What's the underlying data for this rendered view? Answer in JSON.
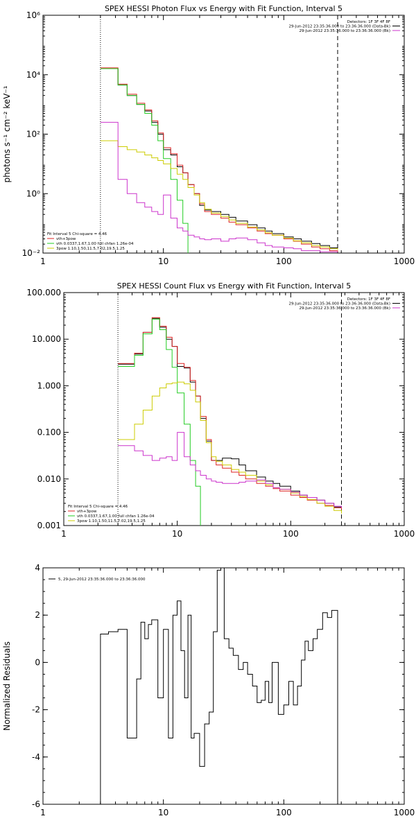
{
  "chart_data": [
    {
      "type": "line",
      "title": "SPEX HESSI Photon Flux vs Energy with Fit Function, Interval 5",
      "xlabel": "",
      "ylabel": "photons s⁻¹ cm⁻² keV⁻¹",
      "xscale": "log",
      "yscale": "log",
      "xlim": [
        1,
        1000
      ],
      "ylim": [
        0.01,
        1000000
      ],
      "x_ticks": [
        1,
        10,
        100,
        1000
      ],
      "x_tick_labels": [
        "1",
        "10",
        "100",
        "1000"
      ],
      "y_ticks": [
        0.01,
        1,
        100,
        10000,
        1000000
      ],
      "y_tick_labels": [
        "10⁻²",
        "10⁰",
        "10²",
        "10⁴",
        "10⁶"
      ],
      "vlines": [
        {
          "x": 3,
          "style": "dotted"
        },
        {
          "x": 280,
          "style": "dashed"
        }
      ],
      "legend_topright": [
        {
          "text": "Detectors: 1F 3F 4F 8F",
          "color": ""
        },
        {
          "text": "29-Jun-2012 23:35:36.000 to 23:36:36.000 (Data-Bk)",
          "color": "#000000"
        },
        {
          "text": "29-Jun-2012 23:35:36.000 to 23:36:36.000 (Bk)",
          "color": "#cc33cc"
        }
      ],
      "legend_bottomleft": [
        {
          "text": "Fit Interval 5   Chi-square = 4.46",
          "color": ""
        },
        {
          "text": "vth+3pow",
          "color": "#dd2222"
        },
        {
          "text": "vth 0.0337,1.67,1.00  full chfan 1.26e-04",
          "color": "#22cc22"
        },
        {
          "text": "3pow 1.10,1.50,11.5,7.02,19.5,1.25",
          "color": "#cccc00"
        }
      ],
      "series": [
        {
          "color": "#000000",
          "x": [
            3,
            3.5,
            4.2,
            5,
            6,
            7,
            8,
            9,
            10,
            11.5,
            13,
            14.5,
            16,
            18,
            20,
            22,
            25,
            30,
            35,
            40,
            50,
            60,
            70,
            80,
            100,
            120,
            140,
            170,
            200,
            240,
            280
          ],
          "y": [
            16000,
            16000,
            4500,
            2000,
            1000,
            600,
            250,
            100,
            30,
            20,
            8,
            5,
            2,
            1,
            0.4,
            0.28,
            0.25,
            0.2,
            0.16,
            0.12,
            0.09,
            0.07,
            0.055,
            0.045,
            0.035,
            0.03,
            0.025,
            0.021,
            0.018,
            0.015,
            0.015
          ]
        },
        {
          "color": "#dd2222",
          "x": [
            3,
            3.5,
            4.2,
            5,
            6,
            7,
            8,
            9,
            10,
            11.5,
            13,
            14.5,
            16,
            18,
            20,
            22,
            25,
            30,
            35,
            40,
            50,
            60,
            70,
            80,
            100,
            120,
            140,
            170,
            200,
            240,
            280
          ],
          "y": [
            17000,
            17000,
            4800,
            2200,
            1100,
            650,
            280,
            110,
            35,
            22,
            9,
            5,
            2,
            1,
            0.45,
            0.25,
            0.2,
            0.15,
            0.11,
            0.09,
            0.07,
            0.055,
            0.045,
            0.04,
            0.03,
            0.025,
            0.02,
            0.016,
            0.014,
            0.012,
            0.011
          ]
        },
        {
          "color": "#22cc22",
          "x": [
            3,
            3.5,
            4.2,
            5,
            6,
            7,
            8,
            9,
            10,
            11.5,
            13,
            14.5,
            16
          ],
          "y": [
            16000,
            16000,
            4500,
            2000,
            1000,
            500,
            200,
            60,
            15,
            3,
            0.6,
            0.1,
            0.01
          ]
        },
        {
          "color": "#cccc00",
          "x": [
            3,
            3.5,
            4.2,
            5,
            6,
            7,
            8,
            9,
            10,
            11.5,
            13,
            14.5,
            16,
            18,
            20,
            22,
            25,
            30,
            35,
            40,
            50,
            60,
            70,
            80,
            100,
            120,
            140,
            170,
            200,
            240,
            280
          ],
          "y": [
            60,
            60,
            38,
            30,
            25,
            20,
            16,
            13,
            10,
            7,
            4.5,
            3,
            1.6,
            0.9,
            0.5,
            0.3,
            0.22,
            0.17,
            0.13,
            0.1,
            0.075,
            0.06,
            0.048,
            0.04,
            0.032,
            0.026,
            0.022,
            0.018,
            0.016,
            0.014,
            0.013
          ]
        },
        {
          "color": "#cc33cc",
          "x": [
            3,
            3.5,
            4.2,
            5,
            6,
            7,
            8,
            9,
            10,
            11.5,
            13,
            14.5,
            16,
            18,
            20,
            22,
            25,
            30,
            35,
            40,
            50,
            60,
            70,
            80,
            100,
            120,
            140,
            170,
            200,
            240,
            280
          ],
          "y": [
            250,
            250,
            3,
            1,
            0.5,
            0.35,
            0.25,
            0.2,
            0.9,
            0.15,
            0.07,
            0.055,
            0.04,
            0.035,
            0.03,
            0.028,
            0.03,
            0.025,
            0.03,
            0.032,
            0.028,
            0.022,
            0.018,
            0.016,
            0.015,
            0.014,
            0.012,
            0.012,
            0.011,
            0.011,
            0.011
          ]
        }
      ]
    },
    {
      "type": "line",
      "title": "SPEX HESSI Count Flux vs Energy with Fit Function, Interval 5",
      "xlabel": "",
      "ylabel": "",
      "xscale": "log",
      "yscale": "log",
      "xlim": [
        1,
        1000
      ],
      "ylim": [
        0.001,
        100
      ],
      "x_ticks": [
        1,
        10,
        100,
        1000
      ],
      "x_tick_labels": [
        "1",
        "10",
        "100",
        "1000"
      ],
      "y_ticks": [
        0.001,
        0.01,
        0.1,
        1,
        10,
        100
      ],
      "y_tick_labels": [
        "0.001",
        "0.010",
        "0.100",
        "1.000",
        "10.000",
        "100.000"
      ],
      "vlines": [
        {
          "x": 3,
          "style": "dotted"
        },
        {
          "x": 280,
          "style": "dashed"
        }
      ],
      "legend_topright": [
        {
          "text": "Detectors: 1F 3F 4F 8F",
          "color": ""
        },
        {
          "text": "29-Jun-2012 23:35:36.000 to 23:36:36.000 (Data-Bk)",
          "color": "#000000"
        },
        {
          "text": "29-Jun-2012 23:35:36.000 to 23:36:36.000 (Bk)",
          "color": "#cc33cc"
        }
      ],
      "legend_bottomleft": [
        {
          "text": "Fit Interval 5   Chi-square = 4.46",
          "color": ""
        },
        {
          "text": "vth+3pow",
          "color": "#dd2222"
        },
        {
          "text": "vth 0.0337,1.67,1.00  full chfan 1.26e-04",
          "color": "#22cc22"
        },
        {
          "text": "3pow 1.10,1.50,11.5,7.02,19.5,1.25",
          "color": "#cccc00"
        }
      ],
      "series": [
        {
          "color": "#000000",
          "x": [
            3,
            3.5,
            4.2,
            5,
            6,
            7,
            8,
            9,
            10,
            11.5,
            13,
            14.5,
            16,
            18,
            20,
            22,
            25,
            30,
            35,
            40,
            50,
            60,
            70,
            80,
            100,
            120,
            140,
            170,
            200,
            240,
            280
          ],
          "y": [
            2.9,
            2.9,
            4.8,
            14,
            28,
            18,
            10,
            7,
            2.6,
            2.4,
            1.2,
            0.6,
            0.2,
            0.065,
            0.025,
            0.025,
            0.028,
            0.027,
            0.02,
            0.015,
            0.011,
            0.009,
            0.008,
            0.007,
            0.0055,
            0.0045,
            0.004,
            0.0035,
            0.003,
            0.0025,
            0.0022
          ]
        },
        {
          "color": "#dd2222",
          "x": [
            3,
            3.5,
            4.2,
            5,
            6,
            7,
            8,
            9,
            10,
            11.5,
            13,
            14.5,
            16,
            18,
            20,
            22,
            25,
            30,
            35,
            40,
            50,
            60,
            70,
            80,
            100,
            120,
            140,
            170,
            200,
            240,
            280
          ],
          "y": [
            3,
            3,
            5,
            14,
            29,
            19,
            11,
            7,
            3,
            2.5,
            1.3,
            0.6,
            0.22,
            0.07,
            0.025,
            0.02,
            0.017,
            0.014,
            0.012,
            0.01,
            0.008,
            0.007,
            0.0062,
            0.0055,
            0.0045,
            0.004,
            0.0035,
            0.003,
            0.0027,
            0.0024,
            0.0022
          ]
        },
        {
          "color": "#22cc22",
          "x": [
            3,
            3.5,
            4.2,
            5,
            6,
            7,
            8,
            9,
            10,
            11.5,
            13,
            14.5,
            16
          ],
          "y": [
            2.6,
            2.6,
            4.5,
            13,
            27,
            16,
            6,
            2.5,
            0.7,
            0.15,
            0.025,
            0.007,
            0.001
          ]
        },
        {
          "color": "#cccc00",
          "x": [
            3,
            3.5,
            4.2,
            5,
            6,
            7,
            8,
            9,
            10,
            11.5,
            13,
            14.5,
            16,
            18,
            20,
            22,
            25,
            30,
            35,
            40,
            50,
            60,
            70,
            80,
            100,
            120,
            140,
            170,
            200,
            240,
            280
          ],
          "y": [
            0.07,
            0.07,
            0.15,
            0.3,
            0.6,
            0.9,
            1.1,
            1.15,
            1.2,
            1.1,
            0.8,
            0.45,
            0.18,
            0.06,
            0.03,
            0.024,
            0.02,
            0.016,
            0.014,
            0.012,
            0.009,
            0.0075,
            0.0065,
            0.006,
            0.005,
            0.0042,
            0.0036,
            0.003,
            0.0026,
            0.0021,
            0.0018
          ]
        },
        {
          "color": "#cc33cc",
          "x": [
            3,
            3.5,
            4.2,
            5,
            6,
            7,
            8,
            9,
            10,
            11.5,
            13,
            14.5,
            16,
            18,
            20,
            22,
            25,
            30,
            35,
            40,
            50,
            60,
            70,
            80,
            100,
            120,
            140,
            170,
            200,
            240,
            280
          ],
          "y": [
            0.052,
            0.052,
            0.04,
            0.032,
            0.025,
            0.028,
            0.03,
            0.025,
            0.1,
            0.03,
            0.02,
            0.015,
            0.012,
            0.01,
            0.009,
            0.0085,
            0.008,
            0.008,
            0.0085,
            0.009,
            0.0095,
            0.008,
            0.0065,
            0.006,
            0.0052,
            0.0045,
            0.004,
            0.0035,
            0.003,
            0.0026,
            0.0024
          ]
        }
      ]
    },
    {
      "type": "line",
      "title": "",
      "xlabel": "",
      "ylabel": "Normalized Residuals",
      "xscale": "log",
      "yscale": "linear",
      "xlim": [
        1,
        1000
      ],
      "ylim": [
        -6,
        4
      ],
      "x_ticks": [
        1,
        10,
        100,
        1000
      ],
      "x_tick_labels": [
        "1",
        "10",
        "100",
        "1000"
      ],
      "y_ticks": [
        -6,
        -4,
        -2,
        0,
        2,
        4
      ],
      "y_tick_labels": [
        "-6",
        "-4",
        "-2",
        "0",
        "2",
        "4"
      ],
      "legend_topleft": [
        {
          "text": "5, 29-Jun-2012 23:35:36.000 to 23:36:36.000",
          "color": "#000000"
        }
      ],
      "series": [
        {
          "color": "#000000",
          "x": [
            3,
            3.5,
            4.2,
            5,
            5.5,
            6,
            6.5,
            7,
            7.5,
            8,
            9,
            10,
            11,
            12,
            13,
            14,
            15,
            16,
            17,
            18,
            20,
            22,
            24,
            26,
            28,
            30,
            32,
            35,
            38,
            42,
            46,
            50,
            55,
            60,
            65,
            70,
            75,
            80,
            90,
            100,
            110,
            120,
            130,
            140,
            150,
            160,
            175,
            190,
            210,
            230,
            250,
            280
          ],
          "y": [
            1.2,
            1.3,
            1.4,
            -3.2,
            -3.2,
            -0.7,
            1.7,
            1.0,
            1.6,
            1.8,
            -1.5,
            1.4,
            -3.2,
            2.0,
            2.6,
            0.5,
            -1.5,
            2.0,
            -3.2,
            -3.0,
            -4.4,
            -2.6,
            -2.1,
            1.3,
            3.9,
            4.1,
            1.0,
            0.6,
            0.3,
            -0.3,
            0.0,
            -0.5,
            -1.0,
            -1.7,
            -1.6,
            -0.8,
            -1.7,
            0.0,
            -2.2,
            -1.8,
            -0.8,
            -1.8,
            -1.0,
            0.1,
            0.9,
            0.5,
            1.0,
            1.4,
            2.1,
            1.9,
            2.2,
            -6
          ]
        }
      ]
    }
  ]
}
